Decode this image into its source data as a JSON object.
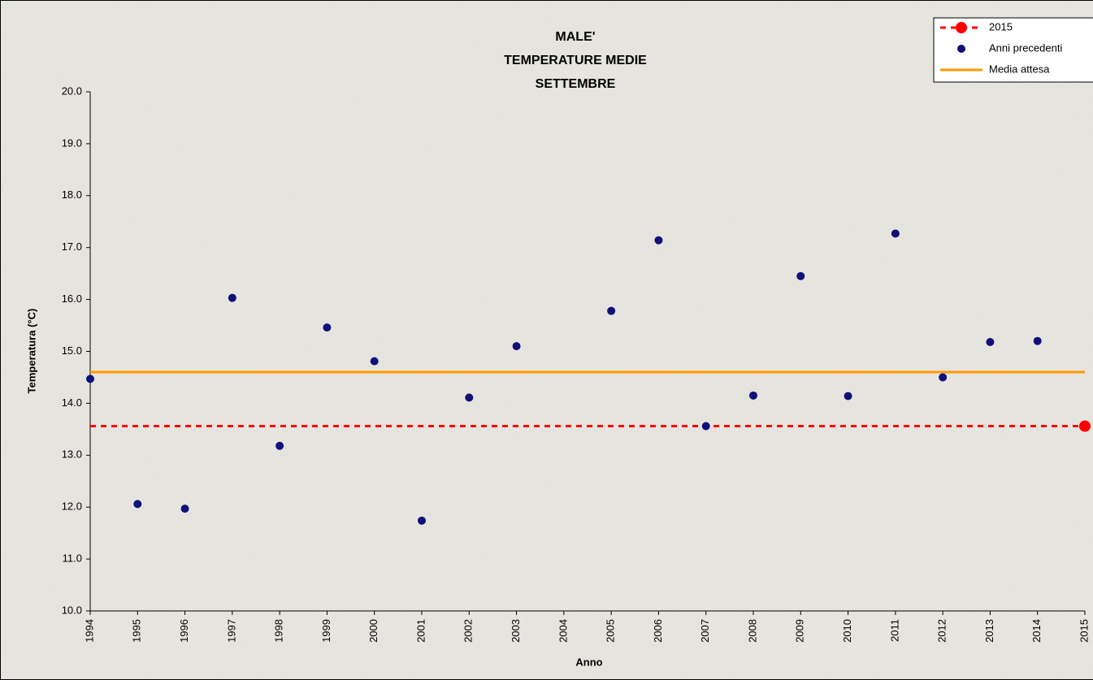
{
  "chart_data": {
    "type": "scatter",
    "title": [
      "MALE'",
      "TEMPERATURE MEDIE",
      "SETTEMBRE"
    ],
    "x_label": "Anno",
    "y_label": "Temperatura (°C)",
    "xlim": [
      1994,
      2015
    ],
    "xticks": [
      1994,
      1995,
      1996,
      1997,
      1998,
      1999,
      2000,
      2001,
      2002,
      2003,
      2004,
      2005,
      2006,
      2007,
      2008,
      2009,
      2010,
      2011,
      2012,
      2013,
      2014,
      2015
    ],
    "ylim": [
      10,
      20
    ],
    "yticks": [
      {
        "value": 10,
        "label": "10.0"
      },
      {
        "value": 11,
        "label": "11.0"
      },
      {
        "value": 12,
        "label": "12.0"
      },
      {
        "value": 13,
        "label": "13.0"
      },
      {
        "value": 14,
        "label": "14.0"
      },
      {
        "value": 15,
        "label": "15.0"
      },
      {
        "value": 16,
        "label": "16.0"
      },
      {
        "value": 17,
        "label": "17.0"
      },
      {
        "value": 18,
        "label": "18.0"
      },
      {
        "value": 19,
        "label": "19.0"
      },
      {
        "value": 20,
        "label": "20.0"
      }
    ],
    "legend_position": "top-right",
    "series": [
      {
        "name": "2015",
        "color": "#ff0000",
        "style": "point-with-dashed-line",
        "x": [
          2015
        ],
        "values": [
          13.56
        ]
      },
      {
        "name": "Anni precedenti",
        "color": "#10107a",
        "style": "points",
        "x": [
          1994,
          1995,
          1996,
          1997,
          1998,
          1999,
          2000,
          2001,
          2002,
          2003,
          2005,
          2006,
          2007,
          2008,
          2009,
          2010,
          2011,
          2012,
          2013,
          2014
        ],
        "values": [
          14.47,
          12.06,
          11.97,
          16.03,
          13.18,
          15.46,
          14.81,
          11.74,
          14.11,
          15.1,
          15.78,
          17.14,
          13.56,
          14.15,
          16.45,
          14.14,
          17.27,
          14.5,
          15.18,
          15.2
        ]
      },
      {
        "name": "Media attesa",
        "color": "#ff9900",
        "style": "hline",
        "values": [
          14.6
        ]
      }
    ]
  }
}
